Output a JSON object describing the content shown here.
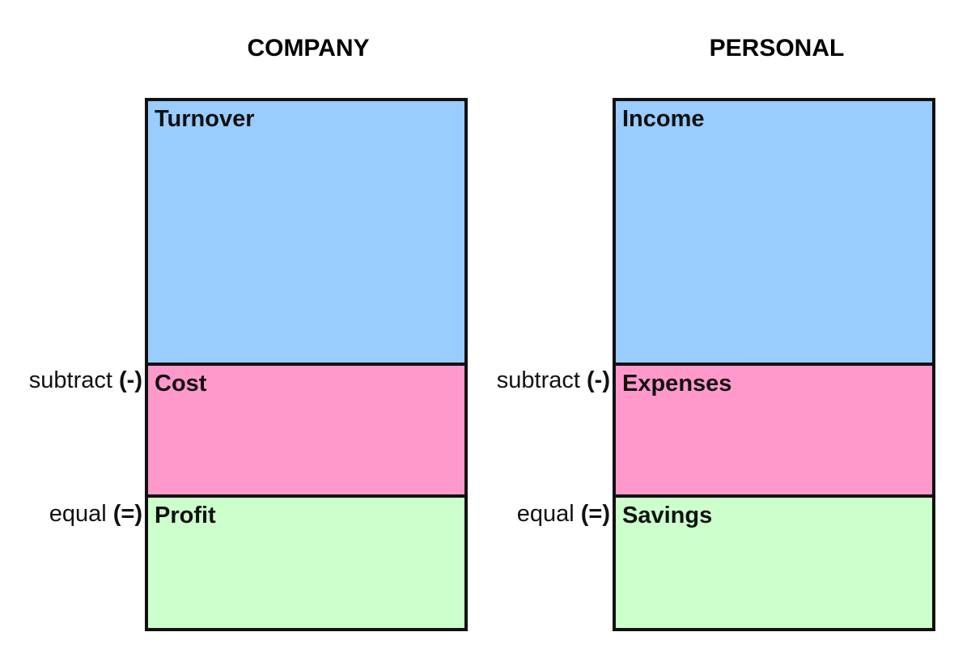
{
  "company": {
    "title": "COMPANY",
    "top_label": "Turnover",
    "middle_label": "Cost",
    "bottom_label": "Profit"
  },
  "personal": {
    "title": "PERSONAL",
    "top_label": "Income",
    "middle_label": "Expenses",
    "bottom_label": "Savings"
  },
  "operators": {
    "subtract_word": "subtract",
    "subtract_symbol": "(-)",
    "equal_word": "equal",
    "equal_symbol": "(=)"
  },
  "colors": {
    "top_box": "#99ccff",
    "middle_box": "#ff99cc",
    "bottom_box": "#ccffcc",
    "border": "#111111"
  }
}
